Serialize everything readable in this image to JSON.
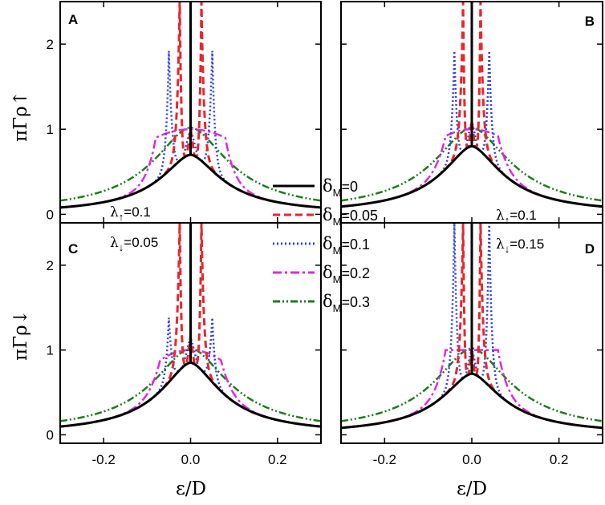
{
  "chart_data": {
    "type": "line",
    "ylabel_top": "πΓρ↑",
    "ylabel_bottom": "πΓρ↓",
    "xlabel": "ε/D",
    "xlim": [
      -0.3,
      0.3
    ],
    "ylim": [
      -0.1,
      2.5
    ],
    "xticks": [
      -0.2,
      0.0,
      0.2
    ],
    "xtick_labels": [
      "-0.2",
      "0.0",
      "0.2"
    ],
    "yticks": [
      0,
      1,
      2
    ],
    "ytick_labels": [
      "0",
      "1",
      "2"
    ],
    "legend": {
      "position": "center",
      "entries": [
        {
          "label_sym": "δ",
          "label_sub": "M",
          "label_rest": "=0",
          "color": "#000000",
          "dash": "solid"
        },
        {
          "label_sym": "δ",
          "label_sub": "M",
          "label_rest": "=0.05",
          "color": "#e8262b",
          "dash": "dashed"
        },
        {
          "label_sym": "δ",
          "label_sub": "M",
          "label_rest": "=0.1",
          "color": "#2a3fdb",
          "dash": "dotted"
        },
        {
          "label_sym": "δ",
          "label_sub": "M",
          "label_rest": "=0.2",
          "color": "#e028e0",
          "dash": "dash-dot"
        },
        {
          "label_sym": "δ",
          "label_sub": "M",
          "label_rest": "=0.3",
          "color": "#1e7a1e",
          "dash": "dash-dot-dot"
        }
      ]
    },
    "panels": [
      {
        "label": "A",
        "lambda_sym": "λ",
        "lambda_sub": "↑",
        "lambda_val": "=0.1",
        "annotation_position": "bottom-left",
        "series": [
          {
            "name": "δM=0",
            "base_peak": 0.7,
            "spike_height": 1.0,
            "spike_x": 0.0
          },
          {
            "name": "δM=0.05",
            "base_peak": 0.7,
            "spike_height": 2.5,
            "spike_x": 0.025
          },
          {
            "name": "δM=0.1",
            "base_peak": 0.7,
            "spike_height": 1.92,
            "spike_x": 0.05
          },
          {
            "name": "δM=0.2",
            "base_peak": 0.7,
            "plateau": 1.0,
            "plateau_x": 0.03,
            "bump": 0.9,
            "bump_x": 0.08
          },
          {
            "name": "δM=0.3",
            "base_peak": 0.7,
            "plateau": 1.0,
            "plateau_x": 0.0
          }
        ]
      },
      {
        "label": "B",
        "lambda_sym": "λ",
        "lambda_sub": "↑",
        "lambda_val": "=0.1",
        "annotation_position": "bottom-right",
        "series": [
          {
            "name": "δM=0",
            "base_peak": 0.8,
            "spike_height": 1.0,
            "spike_x": 0.0
          },
          {
            "name": "δM=0.05",
            "base_peak": 0.8,
            "spike_height": 2.5,
            "spike_x": 0.02
          },
          {
            "name": "δM=0.1",
            "base_peak": 0.8,
            "spike_height": 1.92,
            "spike_x": 0.04
          },
          {
            "name": "δM=0.2",
            "base_peak": 0.8,
            "plateau": 1.0,
            "plateau_x": 0.03,
            "bump": 0.92,
            "bump_x": 0.06
          },
          {
            "name": "δM=0.3",
            "base_peak": 0.8,
            "plateau": 1.0,
            "plateau_x": 0.0
          }
        ]
      },
      {
        "label": "C",
        "lambda_sym": "λ",
        "lambda_sub": "↓",
        "lambda_val": "=0.05",
        "annotation_position": "top-left",
        "series": [
          {
            "name": "δM=0",
            "base_peak": 0.85,
            "spike_height": 1.0,
            "spike_x": 0.0
          },
          {
            "name": "δM=0.05",
            "base_peak": 0.85,
            "spike_height": 2.5,
            "spike_x": 0.025
          },
          {
            "name": "δM=0.1",
            "base_peak": 0.85,
            "spike_height": 1.38,
            "spike_x": 0.05
          },
          {
            "name": "δM=0.2",
            "base_peak": 0.85,
            "plateau": 1.0,
            "plateau_x": 0.02,
            "bump": 0.88,
            "bump_x": 0.07
          },
          {
            "name": "δM=0.3",
            "base_peak": 0.85,
            "plateau": 1.0,
            "plateau_x": 0.0
          }
        ]
      },
      {
        "label": "D",
        "lambda_sym": "λ",
        "lambda_sub": "↓",
        "lambda_val": "=0.15",
        "annotation_position": "top-right",
        "series": [
          {
            "name": "δM=0",
            "base_peak": 0.72,
            "spike_height": 1.0,
            "spike_x": 0.0
          },
          {
            "name": "δM=0.05",
            "base_peak": 0.72,
            "spike_height": 2.5,
            "spike_x": 0.02
          },
          {
            "name": "δM=0.1",
            "base_peak": 0.72,
            "spike_height": 2.5,
            "spike_x": 0.04
          },
          {
            "name": "δM=0.2",
            "base_peak": 0.72,
            "plateau": 1.0,
            "plateau_x": 0.06,
            "bump": 1.0,
            "bump_x": 0.06
          },
          {
            "name": "δM=0.3",
            "base_peak": 0.72,
            "plateau": 1.0,
            "plateau_x": 0.0
          }
        ]
      }
    ]
  }
}
